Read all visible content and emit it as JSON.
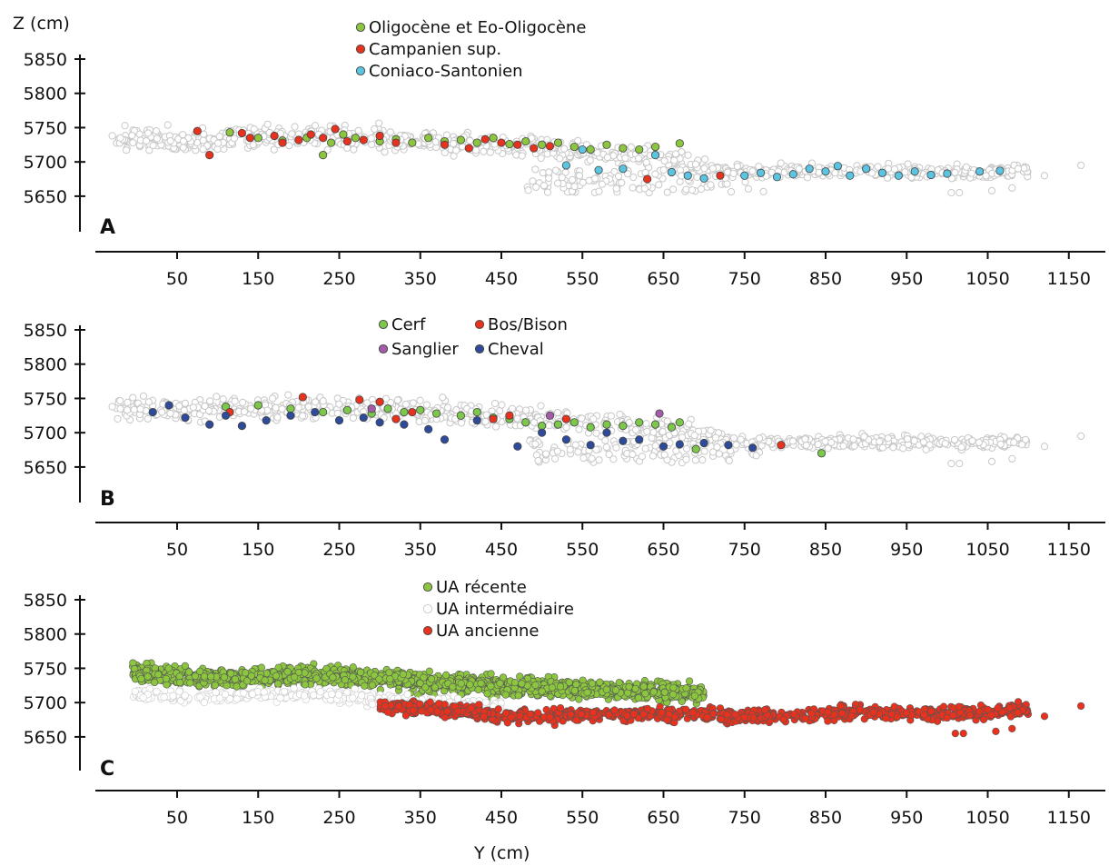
{
  "axis_titles": {
    "z": "Z (cm)",
    "y": "Y (cm)"
  },
  "colors": {
    "background_point_fill": "#ffffff",
    "background_point_stroke": "#c8c8c8",
    "green": "#8cc63f",
    "red": "#e8321e",
    "cyan": "#5bc4e0",
    "blue": "#2e4a9a",
    "purple": "#a45ca8",
    "light_green": "#7cc84a"
  },
  "chart_data": [
    {
      "type": "scatter",
      "panel": "A",
      "xlabel": "",
      "ylabel": "Z (cm)",
      "xlim": [
        -60,
        1230
      ],
      "ylim": [
        5600,
        5860
      ],
      "x_ticks": [
        50,
        150,
        250,
        350,
        450,
        550,
        650,
        750,
        850,
        950,
        1050,
        1150
      ],
      "y_ticks": [
        5850,
        5800,
        5750,
        5700,
        5650
      ],
      "legend": [
        {
          "label": "Oligocène et Eo-Oligocène",
          "color": "#8cc63f"
        },
        {
          "label": "Campanien sup.",
          "color": "#e8321e"
        },
        {
          "label": "Coniaco-Santonien",
          "color": "#5bc4e0"
        }
      ],
      "background_profile": [
        [
          -25,
          5736
        ],
        [
          50,
          5732
        ],
        [
          150,
          5735
        ],
        [
          250,
          5738
        ],
        [
          350,
          5730
        ],
        [
          450,
          5725
        ],
        [
          550,
          5715
        ],
        [
          650,
          5705
        ],
        [
          750,
          5685
        ],
        [
          850,
          5687
        ],
        [
          950,
          5686
        ],
        [
          1050,
          5684
        ],
        [
          1100,
          5690
        ],
        [
          1165,
          5695
        ]
      ],
      "series": [
        {
          "name": "Oligocène et Eo-Oligocène",
          "color": "#8cc63f",
          "points": [
            [
              115,
              5743
            ],
            [
              150,
              5735
            ],
            [
              180,
              5731
            ],
            [
              210,
              5735
            ],
            [
              240,
              5728
            ],
            [
              255,
              5740
            ],
            [
              270,
              5735
            ],
            [
              300,
              5730
            ],
            [
              320,
              5733
            ],
            [
              340,
              5728
            ],
            [
              360,
              5735
            ],
            [
              380,
              5730
            ],
            [
              400,
              5732
            ],
            [
              420,
              5728
            ],
            [
              440,
              5735
            ],
            [
              460,
              5726
            ],
            [
              480,
              5730
            ],
            [
              500,
              5725
            ],
            [
              520,
              5728
            ],
            [
              540,
              5722
            ],
            [
              560,
              5718
            ],
            [
              580,
              5725
            ],
            [
              600,
              5720
            ],
            [
              620,
              5718
            ],
            [
              640,
              5722
            ],
            [
              670,
              5727
            ],
            [
              230,
              5710
            ]
          ]
        },
        {
          "name": "Campanien sup.",
          "color": "#e8321e",
          "points": [
            [
              75,
              5745
            ],
            [
              90,
              5710
            ],
            [
              130,
              5742
            ],
            [
              140,
              5735
            ],
            [
              170,
              5738
            ],
            [
              180,
              5728
            ],
            [
              200,
              5732
            ],
            [
              215,
              5740
            ],
            [
              230,
              5735
            ],
            [
              245,
              5748
            ],
            [
              260,
              5730
            ],
            [
              280,
              5732
            ],
            [
              300,
              5738
            ],
            [
              320,
              5728
            ],
            [
              380,
              5725
            ],
            [
              410,
              5720
            ],
            [
              430,
              5733
            ],
            [
              450,
              5728
            ],
            [
              470,
              5725
            ],
            [
              490,
              5720
            ],
            [
              510,
              5723
            ],
            [
              630,
              5675
            ],
            [
              720,
              5680
            ]
          ]
        },
        {
          "name": "Coniaco-Santonien",
          "color": "#5bc4e0",
          "points": [
            [
              530,
              5695
            ],
            [
              550,
              5718
            ],
            [
              570,
              5688
            ],
            [
              600,
              5690
            ],
            [
              640,
              5710
            ],
            [
              660,
              5685
            ],
            [
              680,
              5680
            ],
            [
              700,
              5676
            ],
            [
              750,
              5680
            ],
            [
              770,
              5684
            ],
            [
              790,
              5678
            ],
            [
              810,
              5682
            ],
            [
              830,
              5690
            ],
            [
              850,
              5686
            ],
            [
              865,
              5694
            ],
            [
              880,
              5680
            ],
            [
              900,
              5690
            ],
            [
              920,
              5684
            ],
            [
              940,
              5680
            ],
            [
              960,
              5686
            ],
            [
              980,
              5681
            ],
            [
              1000,
              5683
            ],
            [
              1040,
              5686
            ],
            [
              1065,
              5687
            ]
          ]
        }
      ]
    },
    {
      "type": "scatter",
      "panel": "B",
      "xlabel": "",
      "ylabel": "",
      "xlim": [
        -60,
        1230
      ],
      "ylim": [
        5600,
        5860
      ],
      "x_ticks": [
        50,
        150,
        250,
        350,
        450,
        550,
        650,
        750,
        850,
        950,
        1050,
        1150
      ],
      "y_ticks": [
        5850,
        5800,
        5750,
        5700,
        5650
      ],
      "legend": [
        {
          "label": "Cerf",
          "color": "#7cc84a"
        },
        {
          "label": "Bos/Bison",
          "color": "#e8321e"
        },
        {
          "label": "Sanglier",
          "color": "#a45ca8"
        },
        {
          "label": "Cheval",
          "color": "#2e4a9a"
        }
      ],
      "background_profile": [
        [
          -25,
          5736
        ],
        [
          50,
          5732
        ],
        [
          150,
          5735
        ],
        [
          250,
          5738
        ],
        [
          350,
          5730
        ],
        [
          450,
          5725
        ],
        [
          550,
          5715
        ],
        [
          650,
          5705
        ],
        [
          750,
          5685
        ],
        [
          850,
          5687
        ],
        [
          950,
          5686
        ],
        [
          1050,
          5684
        ],
        [
          1100,
          5690
        ],
        [
          1165,
          5695
        ]
      ],
      "series": [
        {
          "name": "Cerf",
          "color": "#7cc84a",
          "points": [
            [
              110,
              5738
            ],
            [
              150,
              5740
            ],
            [
              190,
              5735
            ],
            [
              230,
              5730
            ],
            [
              260,
              5733
            ],
            [
              290,
              5728
            ],
            [
              310,
              5735
            ],
            [
              330,
              5730
            ],
            [
              350,
              5733
            ],
            [
              370,
              5728
            ],
            [
              400,
              5725
            ],
            [
              420,
              5730
            ],
            [
              440,
              5722
            ],
            [
              460,
              5720
            ],
            [
              480,
              5715
            ],
            [
              500,
              5710
            ],
            [
              520,
              5712
            ],
            [
              540,
              5715
            ],
            [
              560,
              5708
            ],
            [
              580,
              5712
            ],
            [
              600,
              5710
            ],
            [
              620,
              5715
            ],
            [
              640,
              5712
            ],
            [
              660,
              5708
            ],
            [
              670,
              5715
            ],
            [
              690,
              5676
            ],
            [
              845,
              5670
            ]
          ]
        },
        {
          "name": "Bos/Bison",
          "color": "#e8321e",
          "points": [
            [
              115,
              5730
            ],
            [
              205,
              5752
            ],
            [
              275,
              5748
            ],
            [
              300,
              5745
            ],
            [
              320,
              5720
            ],
            [
              340,
              5730
            ],
            [
              440,
              5720
            ],
            [
              460,
              5725
            ],
            [
              530,
              5720
            ],
            [
              795,
              5682
            ]
          ]
        },
        {
          "name": "Sanglier",
          "color": "#a45ca8",
          "points": [
            [
              290,
              5735
            ],
            [
              510,
              5725
            ],
            [
              645,
              5728
            ]
          ]
        },
        {
          "name": "Cheval",
          "color": "#2e4a9a",
          "points": [
            [
              20,
              5730
            ],
            [
              40,
              5740
            ],
            [
              60,
              5722
            ],
            [
              90,
              5712
            ],
            [
              110,
              5725
            ],
            [
              130,
              5710
            ],
            [
              160,
              5718
            ],
            [
              190,
              5725
            ],
            [
              220,
              5730
            ],
            [
              250,
              5718
            ],
            [
              280,
              5722
            ],
            [
              300,
              5715
            ],
            [
              330,
              5712
            ],
            [
              360,
              5705
            ],
            [
              380,
              5690
            ],
            [
              420,
              5718
            ],
            [
              470,
              5680
            ],
            [
              500,
              5700
            ],
            [
              530,
              5690
            ],
            [
              560,
              5682
            ],
            [
              580,
              5700
            ],
            [
              600,
              5688
            ],
            [
              620,
              5690
            ],
            [
              650,
              5680
            ],
            [
              670,
              5683
            ],
            [
              700,
              5685
            ],
            [
              730,
              5682
            ],
            [
              760,
              5678
            ]
          ]
        }
      ]
    },
    {
      "type": "scatter",
      "panel": "C",
      "xlabel": "Y (cm)",
      "ylabel": "",
      "xlim": [
        -60,
        1230
      ],
      "ylim": [
        5600,
        5860
      ],
      "x_ticks": [
        50,
        150,
        250,
        350,
        450,
        550,
        650,
        750,
        850,
        950,
        1050,
        1150
      ],
      "y_ticks": [
        5850,
        5800,
        5750,
        5700,
        5650
      ],
      "legend": [
        {
          "label": "UA récente",
          "color": "#8cc63f"
        },
        {
          "label": "UA intermédiaire",
          "color": "#ffffff"
        },
        {
          "label": "UA ancienne",
          "color": "#e8321e"
        }
      ],
      "series": [
        {
          "name": "UA récente",
          "color": "#8cc63f",
          "profile": [
            [
              -5,
              5745
            ],
            [
              50,
              5738
            ],
            [
              100,
              5735
            ],
            [
              150,
              5738
            ],
            [
              200,
              5740
            ],
            [
              250,
              5738
            ],
            [
              300,
              5735
            ],
            [
              350,
              5730
            ],
            [
              400,
              5728
            ],
            [
              450,
              5725
            ],
            [
              500,
              5722
            ],
            [
              550,
              5720
            ],
            [
              600,
              5718
            ],
            [
              650,
              5715
            ],
            [
              700,
              5712
            ]
          ],
          "spread": 12
        },
        {
          "name": "UA intermédiaire",
          "color": "#ffffff",
          "profile": [
            [
              -5,
              5712
            ],
            [
              50,
              5708
            ],
            [
              100,
              5710
            ],
            [
              150,
              5712
            ],
            [
              200,
              5712
            ],
            [
              250,
              5710
            ],
            [
              300,
              5705
            ],
            [
              350,
              5700
            ],
            [
              400,
              5698
            ],
            [
              450,
              5695
            ]
          ],
          "spread": 9
        },
        {
          "name": "UA ancienne",
          "color": "#e8321e",
          "profile": [
            [
              300,
              5695
            ],
            [
              350,
              5692
            ],
            [
              400,
              5688
            ],
            [
              450,
              5680
            ],
            [
              500,
              5680
            ],
            [
              550,
              5682
            ],
            [
              600,
              5684
            ],
            [
              650,
              5683
            ],
            [
              700,
              5682
            ],
            [
              750,
              5680
            ],
            [
              800,
              5680
            ],
            [
              850,
              5684
            ],
            [
              900,
              5686
            ],
            [
              950,
              5685
            ],
            [
              1000,
              5684
            ],
            [
              1050,
              5685
            ],
            [
              1100,
              5690
            ]
          ],
          "spread": 9,
          "outliers": [
            [
              1010,
              5655
            ],
            [
              1020,
              5655
            ],
            [
              1060,
              5658
            ],
            [
              1080,
              5662
            ],
            [
              1120,
              5680
            ],
            [
              1165,
              5695
            ]
          ]
        }
      ]
    }
  ]
}
